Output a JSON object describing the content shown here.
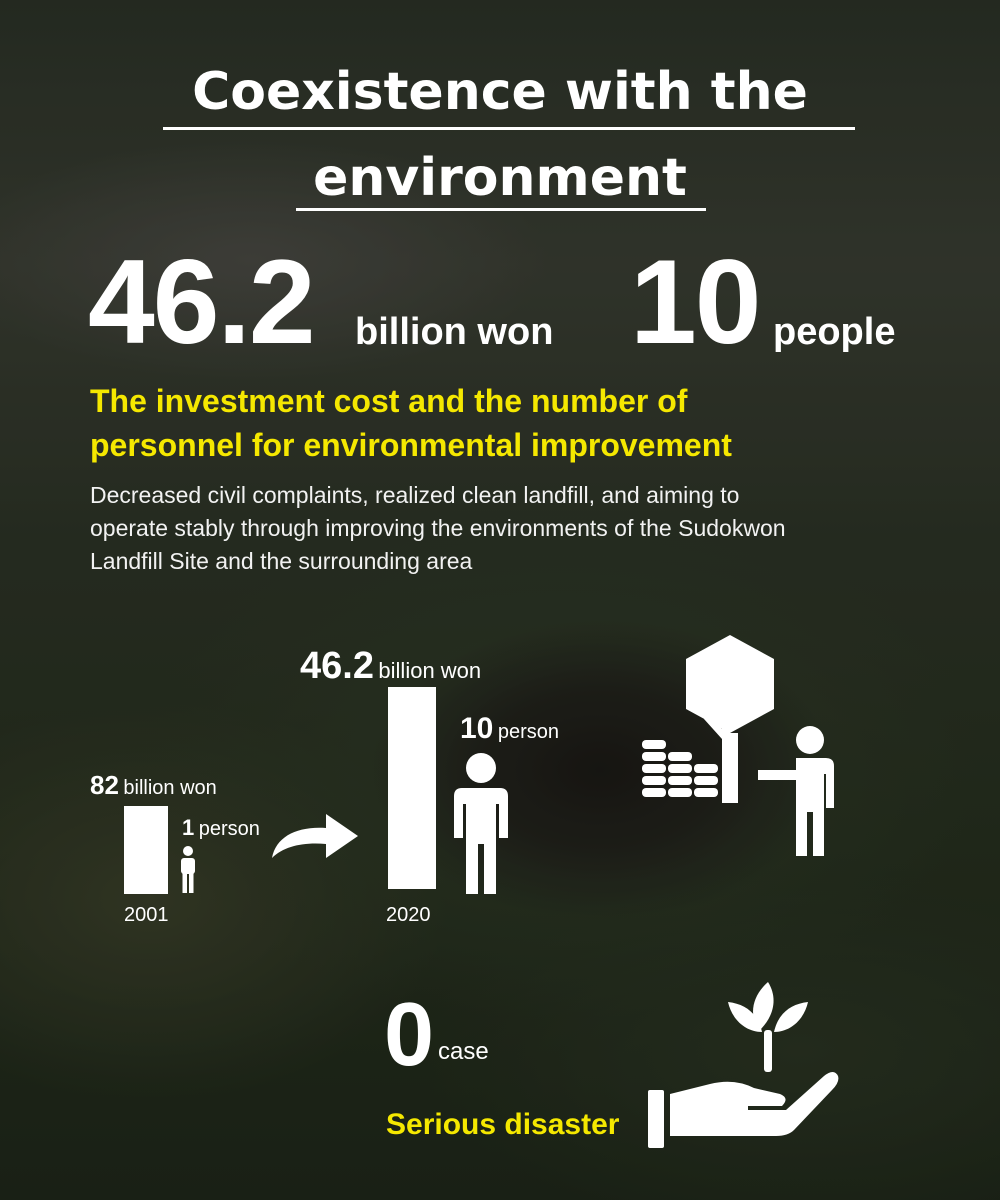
{
  "title": {
    "line1": "Coexistence with the",
    "line2": "environment"
  },
  "headline_stats": {
    "investment": {
      "value": "46.2",
      "unit": "billion won"
    },
    "personnel": {
      "value": "10",
      "unit": "people"
    }
  },
  "subtitle": {
    "line1": "The investment cost and the number of",
    "line2": "personnel for environmental improvement"
  },
  "description": {
    "line1": "Decreased civil complaints, realized clean landfill, and aiming to",
    "line2": "operate stably through improving the environments of the Sudokwon",
    "line3": "Landfill Site and the surrounding area"
  },
  "comparison": {
    "y2001": {
      "year": "2001",
      "amount": "82",
      "amount_unit": "billion won",
      "persons": "1",
      "persons_unit": "person"
    },
    "y2020": {
      "year": "2020",
      "amount": "46.2",
      "amount_unit": "billion won",
      "persons": "10",
      "persons_unit": "person"
    }
  },
  "safety": {
    "value": "0",
    "unit": "case",
    "label": "Serious disaster"
  },
  "icons": [
    "arrow-right-icon",
    "person-icon",
    "coins-icon",
    "tree-icon",
    "person-pointing-icon",
    "hand-sprout-icon"
  ],
  "colors": {
    "accent": "#f5e800",
    "text": "#ffffff"
  }
}
